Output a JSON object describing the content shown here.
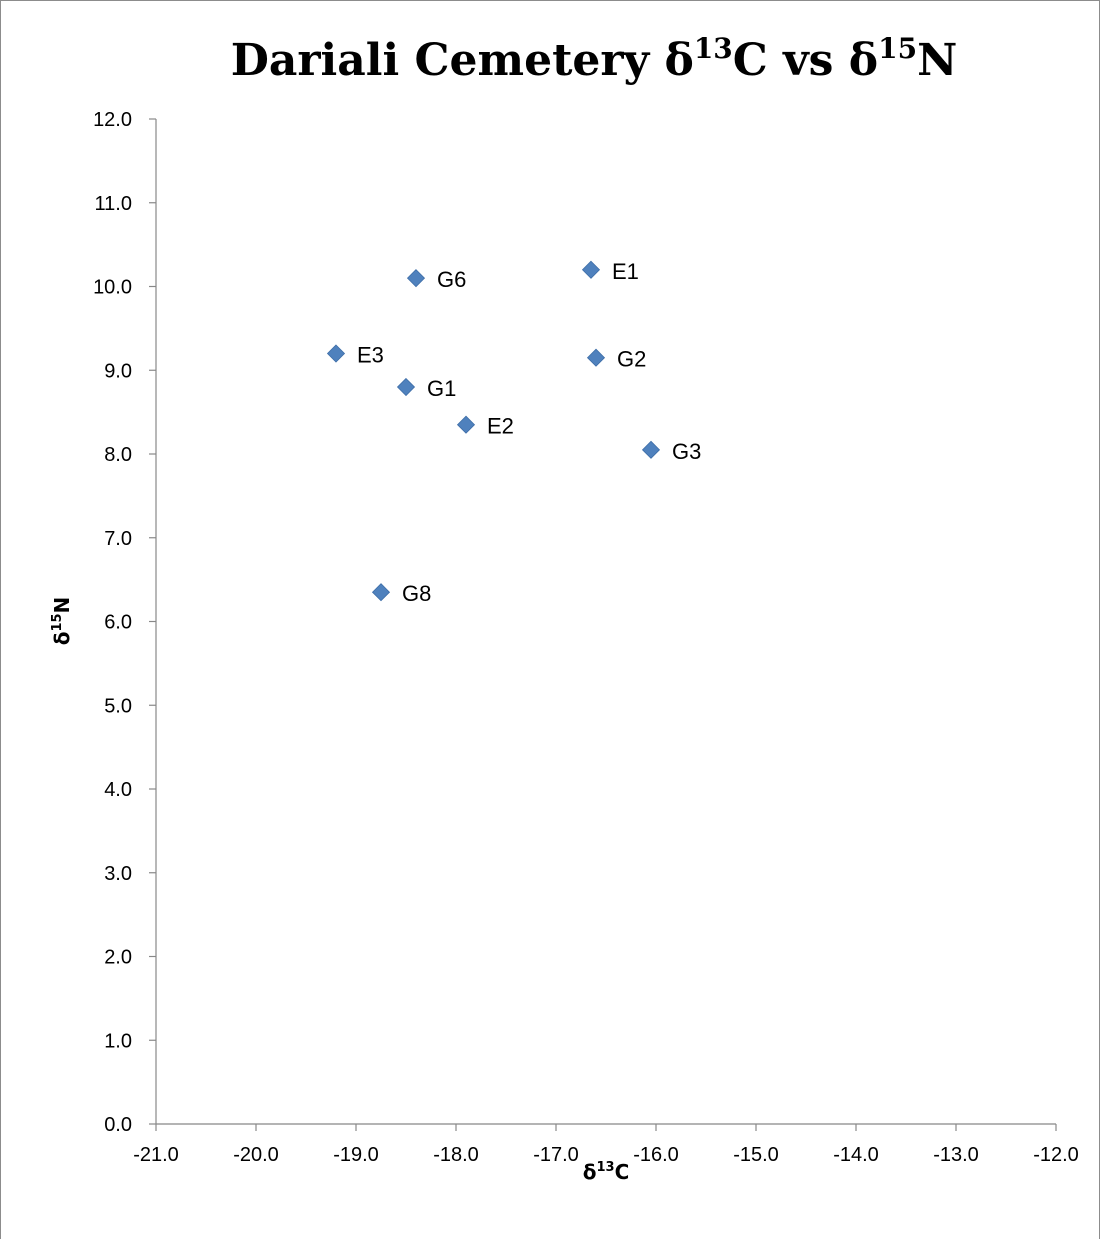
{
  "chart_data": {
    "type": "scatter",
    "title": "Dariali Cemetery δ13C vs δ15N",
    "title_parts": {
      "prefix": "Dariali Cemetery δ",
      "sup1": "13",
      "mid": "C vs δ",
      "sup2": "15",
      "suffix": "N"
    },
    "xlabel": "δ13C",
    "xlabel_parts": {
      "base": "δ",
      "sup": "13",
      "suffix": "C"
    },
    "ylabel": "δ15N",
    "ylabel_parts": {
      "base": "δ",
      "sup": "15",
      "suffix": "N"
    },
    "xlim": [
      -21.0,
      -12.0
    ],
    "ylim": [
      0.0,
      12.0
    ],
    "x_ticks": [
      "-21.0",
      "-20.0",
      "-19.0",
      "-18.0",
      "-17.0",
      "-16.0",
      "-15.0",
      "-14.0",
      "-13.0",
      "-12.0"
    ],
    "y_ticks": [
      "0.0",
      "1.0",
      "2.0",
      "3.0",
      "4.0",
      "5.0",
      "6.0",
      "7.0",
      "8.0",
      "9.0",
      "10.0",
      "11.0",
      "12.0"
    ],
    "grid": false,
    "marker": "diamond",
    "marker_color": "#4F81BD",
    "points": [
      {
        "label": "E1",
        "x": -16.65,
        "y": 10.2
      },
      {
        "label": "G6",
        "x": -18.4,
        "y": 10.1
      },
      {
        "label": "E3",
        "x": -19.2,
        "y": 9.2
      },
      {
        "label": "G2",
        "x": -16.6,
        "y": 9.15
      },
      {
        "label": "G1",
        "x": -18.5,
        "y": 8.8
      },
      {
        "label": "E2",
        "x": -17.9,
        "y": 8.35
      },
      {
        "label": "G3",
        "x": -16.05,
        "y": 8.05
      },
      {
        "label": "G8",
        "x": -18.75,
        "y": 6.35
      }
    ]
  }
}
